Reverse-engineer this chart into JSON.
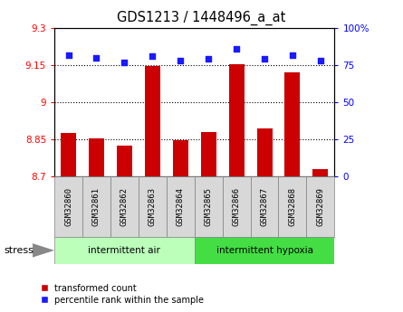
{
  "title": "GDS1213 / 1448496_a_at",
  "samples": [
    "GSM32860",
    "GSM32861",
    "GSM32862",
    "GSM32863",
    "GSM32864",
    "GSM32865",
    "GSM32866",
    "GSM32867",
    "GSM32868",
    "GSM32869"
  ],
  "bar_values": [
    8.875,
    8.855,
    8.825,
    9.145,
    8.845,
    8.878,
    9.155,
    8.895,
    9.12,
    8.73
  ],
  "percentile_values": [
    82,
    80,
    77,
    81,
    78,
    79,
    86,
    79,
    82,
    78
  ],
  "bar_color": "#cc0000",
  "dot_color": "#1a1aff",
  "ylim_left": [
    8.7,
    9.3
  ],
  "ylim_right": [
    0,
    100
  ],
  "yticks_left": [
    8.7,
    8.85,
    9.0,
    9.15,
    9.3
  ],
  "ytick_labels_left": [
    "8.7",
    "8.85",
    "9",
    "9.15",
    "9.3"
  ],
  "yticks_right": [
    0,
    25,
    50,
    75,
    100
  ],
  "ytick_labels_right": [
    "0",
    "25",
    "50",
    "75",
    "100%"
  ],
  "group1_label": "intermittent air",
  "group2_label": "intermittent hypoxia",
  "group1_color": "#bbffbb",
  "group2_color": "#44dd44",
  "stress_label": "stress",
  "legend_bar_label": "transformed count",
  "legend_dot_label": "percentile rank within the sample",
  "bar_bottom": 8.7,
  "sample_box_color": "#d8d8d8",
  "grid_yticks": [
    8.85,
    9.0,
    9.15
  ]
}
